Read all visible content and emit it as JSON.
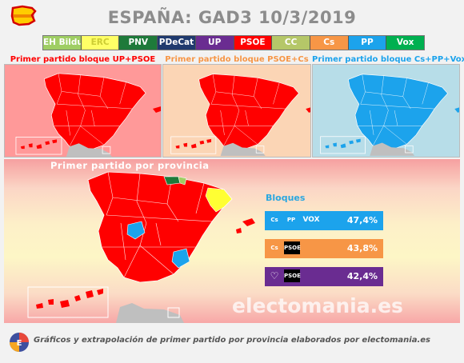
{
  "title": "ESPAÑA: GAD3 10/3/2019",
  "legend": [
    {
      "label": "EH Bildu",
      "color": "#9fce63"
    },
    {
      "label": "ERC",
      "color": "#ffff66"
    },
    {
      "label": "PNV",
      "color": "#1e7a3a"
    },
    {
      "label": "PDeCat",
      "color": "#1f3a6e"
    },
    {
      "label": "UP",
      "color": "#6a2c91"
    },
    {
      "label": "PSOE",
      "color": "#ff0000"
    },
    {
      "label": "CC",
      "color": "#b5c768"
    },
    {
      "label": "Cs",
      "color": "#f79646"
    },
    {
      "label": "PP",
      "color": "#1ca3ec"
    },
    {
      "label": "Vox",
      "color": "#00b050"
    }
  ],
  "panels": [
    {
      "title": "Primer partido bloque UP+PSOE",
      "title_color": "#ff0000",
      "bg": "#ff9999",
      "map_color": "#ff0000"
    },
    {
      "title": "Primer partido bloque PSOE+Cs",
      "title_color": "#f79646",
      "bg": "#fbd5b5",
      "map_color": "#ff0000"
    },
    {
      "title": "Primer partido bloque Cs+PP+Vox",
      "title_color": "#1ca3ec",
      "bg": "#b7dde8",
      "map_color": "#1ca3ec"
    }
  ],
  "main_map": {
    "title": "Primer partido por provincia"
  },
  "blocks": {
    "title": "Bloques",
    "items": [
      {
        "logos": [
          "Cs",
          "PP",
          "VOX"
        ],
        "value": "47,4%",
        "color": "#1ca3ec"
      },
      {
        "logos": [
          "Cs",
          "PSOE"
        ],
        "value": "43,8%",
        "color": "#f79646"
      },
      {
        "logos": [
          "♡",
          "PSOE"
        ],
        "value": "42,4%",
        "color": "#6a2c91"
      }
    ]
  },
  "watermark": "electomania.es",
  "footer": "Gráficos y extrapolación de primer partido por provincia elaborados por electomania.es"
}
